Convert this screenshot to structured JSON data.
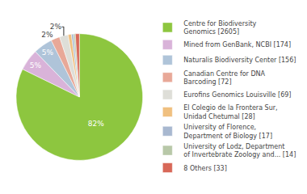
{
  "chart_data": {
    "type": "pie",
    "categories": [
      "Centre for Biodiversity\nGenomics [2605]",
      "Mined from GenBank, NCBI [174]",
      "Naturalis Biodiversity Center [156]",
      "Canadian Centre for DNA\nBarcoding [72]",
      "Eurofins Genomics Louisville [69]",
      "El Colegio de la Frontera Sur,\nUnidad Chetumal [28]",
      "University of Florence,\nDepartment of Biology [17]",
      "University of Lodz, Department\nof Invertebrate Zoology and... [14]",
      "8 Others [33]"
    ],
    "values": [
      82.23,
      5.49,
      4.92,
      2.27,
      2.18,
      0.88,
      0.54,
      0.44,
      1.04
    ],
    "value_labels": [
      "82%",
      "5%",
      "5%",
      "2%",
      "2%",
      null,
      null,
      null,
      null
    ],
    "colors": [
      "#8dc63f",
      "#d9b3d9",
      "#afc4d9",
      "#e8a898",
      "#deded8",
      "#f0c080",
      "#a8b8d0",
      "#b8c8a8",
      "#d86858"
    ],
    "legend": "right"
  }
}
